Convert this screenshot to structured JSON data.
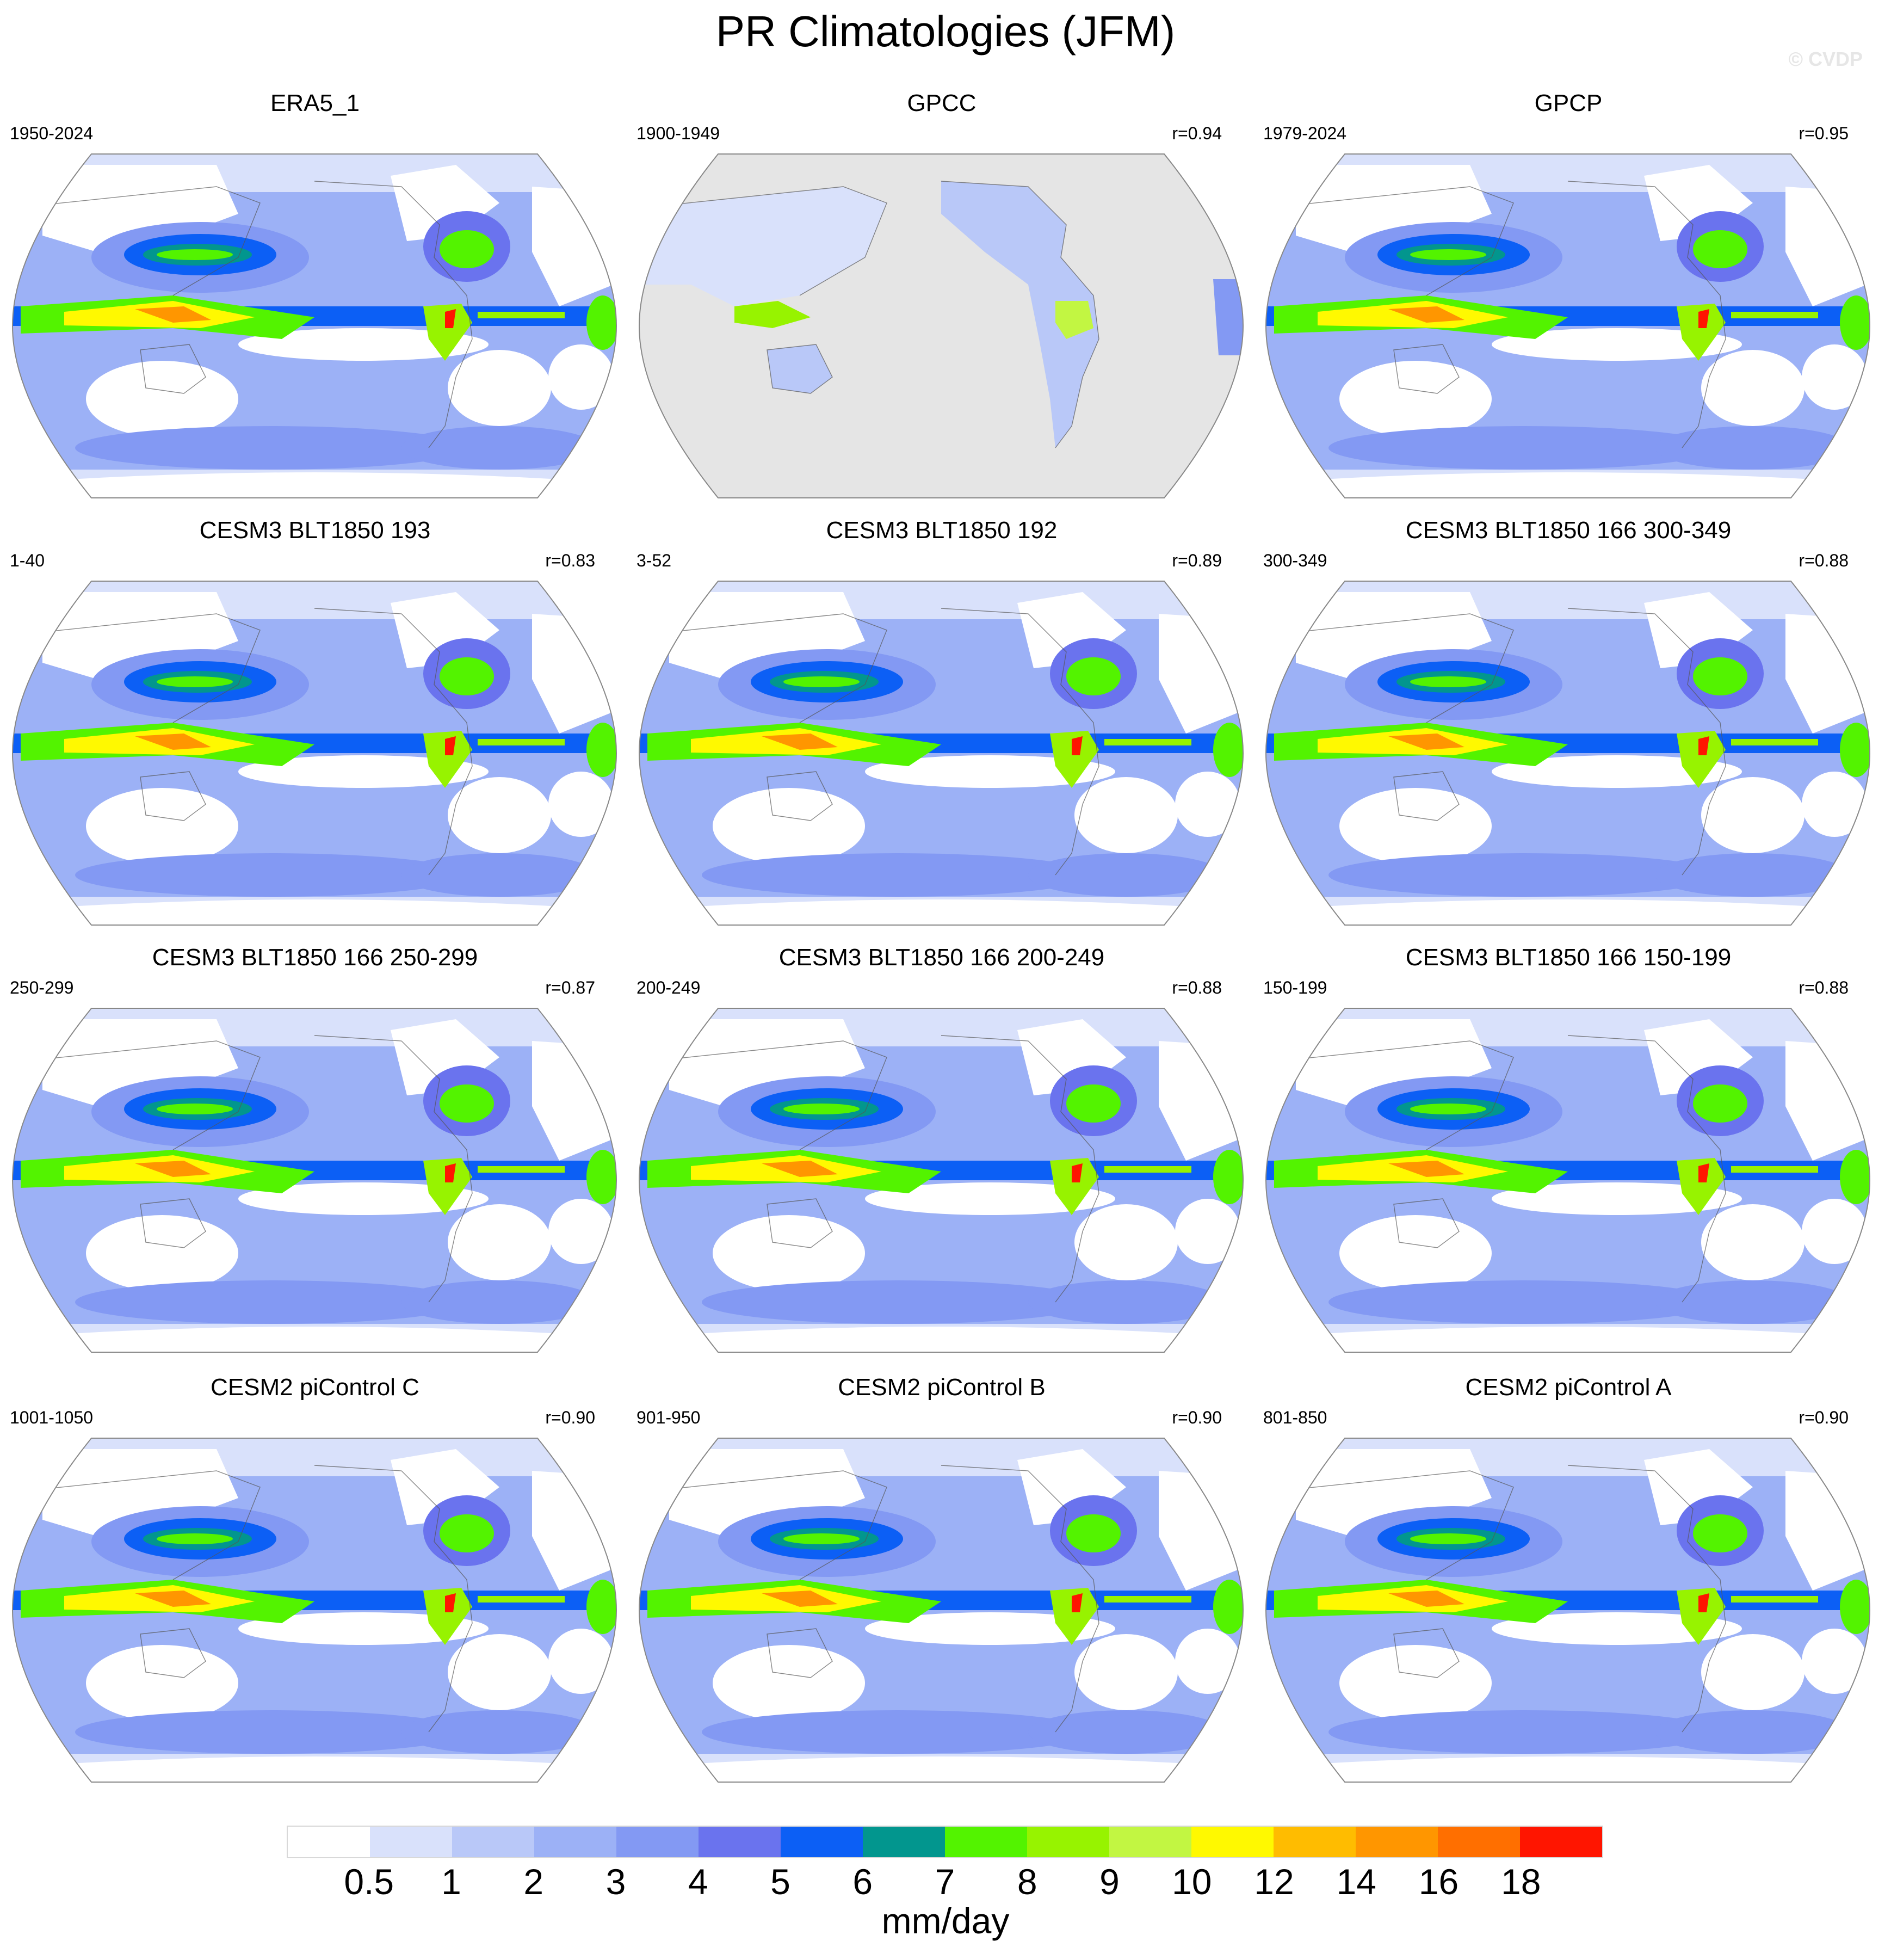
{
  "title": "PR Climatologies (JFM)",
  "copyright": "© CVDP",
  "panels": [
    {
      "title": "ERA5_1",
      "period": "1950-2024",
      "corr": "",
      "style": "obs"
    },
    {
      "title": "GPCC",
      "period": "1900-1949",
      "corr": "r=0.94",
      "style": "land"
    },
    {
      "title": "GPCP",
      "period": "1979-2024",
      "corr": "r=0.95",
      "style": "obs"
    },
    {
      "title": "CESM3 BLT1850 193",
      "period": "1-40",
      "corr": "r=0.83",
      "style": "model"
    },
    {
      "title": "CESM3 BLT1850 192",
      "period": "3-52",
      "corr": "r=0.89",
      "style": "model"
    },
    {
      "title": "CESM3 BLT1850 166 300-349",
      "period": "300-349",
      "corr": "r=0.88",
      "style": "model"
    },
    {
      "title": "CESM3 BLT1850 166 250-299",
      "period": "250-299",
      "corr": "r=0.87",
      "style": "model"
    },
    {
      "title": "CESM3 BLT1850 166 200-249",
      "period": "200-249",
      "corr": "r=0.88",
      "style": "model"
    },
    {
      "title": "CESM3 BLT1850 166 150-199",
      "period": "150-199",
      "corr": "r=0.88",
      "style": "model"
    },
    {
      "title": "CESM2 piControl C",
      "period": "1001-1050",
      "corr": "r=0.90",
      "style": "model"
    },
    {
      "title": "CESM2 piControl B",
      "period": "901-950",
      "corr": "r=0.90",
      "style": "model"
    },
    {
      "title": "CESM2 piControl A",
      "period": "801-850",
      "corr": "r=0.90",
      "style": "model"
    }
  ],
  "colorbar": {
    "labels": [
      "0.5",
      "1",
      "2",
      "3",
      "4",
      "5",
      "6",
      "7",
      "8",
      "9",
      "10",
      "12",
      "14",
      "16",
      "18"
    ],
    "colors": [
      "#ffffff",
      "#d9e1fb",
      "#b9c8f8",
      "#9cb1f6",
      "#8399f3",
      "#6a73ee",
      "#0c5ff5",
      "#02968e",
      "#53f300",
      "#97f300",
      "#c2f642",
      "#fff900",
      "#ffbc00",
      "#ff9600",
      "#ff6f00",
      "#ff1500"
    ],
    "units": "mm/day"
  }
}
